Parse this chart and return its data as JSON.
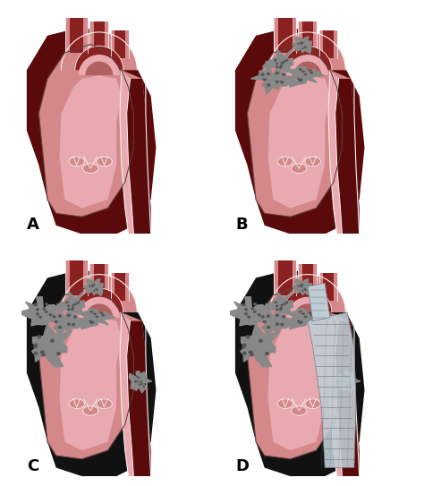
{
  "labels": [
    "A",
    "B",
    "C",
    "D"
  ],
  "label_fontsize": 13,
  "label_fontweight": "bold",
  "bg_color": "#ffffff",
  "pink_outer": "#d4888a",
  "pink_wall": "#c8737a",
  "pink_light": "#e8aab0",
  "dark_lumen": "#8b2020",
  "false_lumen_dark": "#5a0a0a",
  "black_fl": "#111111",
  "thrombus_gray": "#888888",
  "thrombus_dark": "#555555",
  "thrombus_light": "#aaaaaa",
  "stent_color": "#c0ccd4",
  "stent_line": "#707880",
  "white_line": "#f5f0f0",
  "figsize": [
    4.74,
    5.43
  ],
  "dpi": 100
}
